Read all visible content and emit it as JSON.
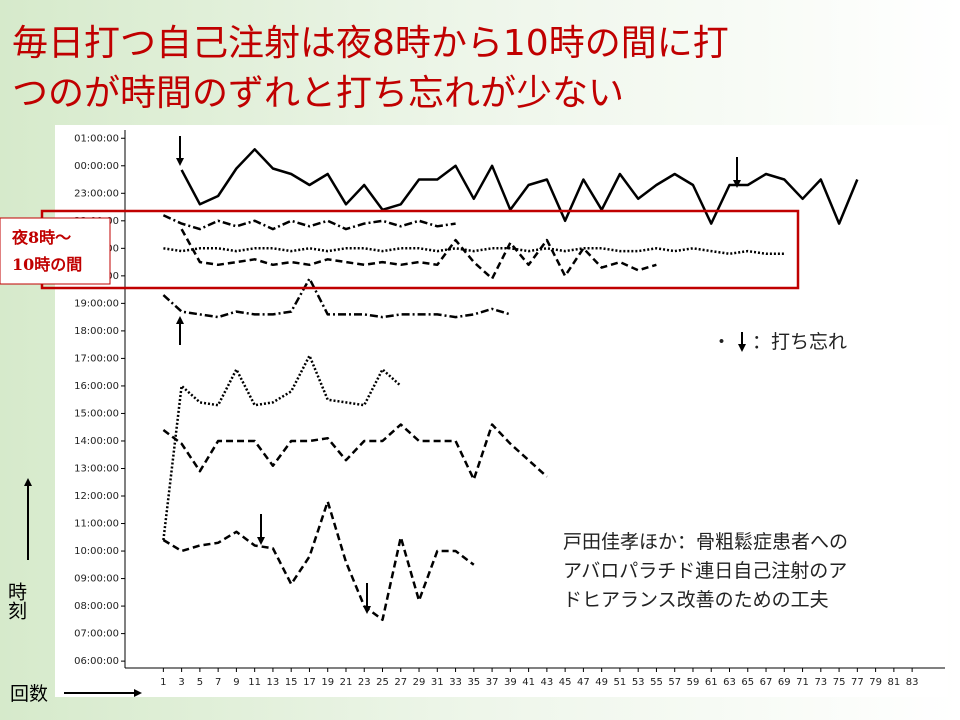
{
  "slide": {
    "title": [
      "毎日打つ自己注射は夜8時から10時の間に打",
      "つのが時間のずれと打ち忘れが少ない"
    ],
    "highlight_label": [
      "夜8時～",
      "10時の間"
    ],
    "legend_label": "：打ち忘れ",
    "citation": [
      "戸田佳孝ほか：骨粗鬆症患者への",
      "アバロパラチド連日自己注射のア",
      "ドヒアランス改善のための工夫"
    ],
    "y_label": "時刻",
    "x_label": "回数"
  },
  "chart_data": {
    "type": "line",
    "xlim": [
      -3.2,
      86.6
    ],
    "ylim": [
      5.75,
      25.3
    ],
    "xticks": [
      1,
      3,
      5,
      7,
      9,
      11,
      13,
      15,
      17,
      19,
      21,
      23,
      25,
      27,
      29,
      31,
      33,
      35,
      37,
      39,
      41,
      43,
      45,
      47,
      49,
      51,
      53,
      55,
      57,
      59,
      61,
      63,
      65,
      67,
      69,
      71,
      73,
      75,
      77,
      79,
      81,
      83
    ],
    "yticks": [
      {
        "value": 6,
        "label": "06:00:00"
      },
      {
        "value": 7,
        "label": "07:00:00"
      },
      {
        "value": 8,
        "label": "08:00:00"
      },
      {
        "value": 9,
        "label": "09:00:00"
      },
      {
        "value": 10,
        "label": "10:00:00"
      },
      {
        "value": 11,
        "label": "11:00:00"
      },
      {
        "value": 12,
        "label": "12:00:00"
      },
      {
        "value": 13,
        "label": "13:00:00"
      },
      {
        "value": 14,
        "label": "14:00:00"
      },
      {
        "value": 15,
        "label": "15:00:00"
      },
      {
        "value": 16,
        "label": "16:00:00"
      },
      {
        "value": 17,
        "label": "17:00:00"
      },
      {
        "value": 18,
        "label": "18:00:00"
      },
      {
        "value": 19,
        "label": "19:00:00"
      },
      {
        "value": 20,
        "label": "20:00:00"
      },
      {
        "value": 21,
        "label": "21:00:00"
      },
      {
        "value": 22,
        "label": "22:00:00"
      },
      {
        "value": 23,
        "label": "23:00:00"
      },
      {
        "value": 24,
        "label": "00:00:00"
      },
      {
        "value": 25,
        "label": "01:00:00"
      }
    ],
    "x": [
      1,
      3,
      5,
      7,
      9,
      11,
      13,
      15,
      17,
      19,
      21,
      23,
      25,
      27,
      29,
      31,
      33,
      35,
      37,
      39,
      41,
      43,
      45,
      47,
      49,
      51,
      53,
      55,
      57,
      59,
      61,
      63,
      65,
      67,
      69,
      71,
      73,
      75,
      77
    ],
    "series": [
      {
        "color": "#000000",
        "dash": "solid",
        "values": [
          null,
          23.85,
          22.6,
          22.9,
          23.9,
          24.6,
          23.9,
          23.7,
          23.3,
          23.7,
          22.6,
          23.3,
          22.4,
          22.6,
          23.5,
          23.5,
          24,
          22.8,
          24,
          22.4,
          23.3,
          23.5,
          22,
          23.5,
          22.4,
          23.7,
          22.8,
          23.3,
          23.7,
          23.3,
          21.9,
          23.3,
          23.3,
          23.7,
          23.5,
          22.8,
          23.5,
          21.9,
          23.5
        ]
      },
      {
        "color": "#000000",
        "dash": "dashdot",
        "values": [
          22.2,
          21.9,
          21.7,
          22,
          21.8,
          22,
          21.7,
          22,
          21.8,
          22,
          21.7,
          21.9,
          22,
          21.8,
          22,
          21.8,
          21.9,
          null,
          null,
          null,
          null,
          null,
          null,
          null,
          null,
          null,
          null,
          null,
          null,
          null,
          null,
          null,
          null,
          null,
          null,
          null,
          null,
          null,
          null
        ]
      },
      {
        "color": "#000000",
        "dash": "dotted",
        "values": [
          21.0,
          20.9,
          21.0,
          21.0,
          20.9,
          21.0,
          21.0,
          20.9,
          21.0,
          20.9,
          21.0,
          21.0,
          20.9,
          21.0,
          21.0,
          20.9,
          21.0,
          20.9,
          21.0,
          21.0,
          20.9,
          21.0,
          20.9,
          21.0,
          21.0,
          20.9,
          20.9,
          21.0,
          20.9,
          21.0,
          20.9,
          20.8,
          20.9,
          20.8,
          20.8,
          null,
          null,
          null,
          null
        ]
      },
      {
        "color": "#000000",
        "dash": "dashed",
        "values": [
          null,
          21.7,
          20.5,
          20.4,
          20.5,
          20.6,
          20.4,
          20.5,
          20.4,
          20.6,
          20.5,
          20.4,
          20.5,
          20.4,
          20.5,
          20.4,
          21.3,
          20.5,
          19.9,
          21.2,
          20.4,
          21.3,
          20.0,
          21.0,
          20.3,
          20.5,
          20.2,
          20.4,
          null,
          null,
          null,
          null,
          null,
          null,
          null,
          null,
          null,
          null,
          null
        ]
      },
      {
        "color": "#000000",
        "dash": "dashdot",
        "values": [
          19.3,
          18.7,
          18.6,
          18.5,
          18.7,
          18.6,
          18.6,
          18.7,
          19.9,
          18.6,
          18.6,
          18.6,
          18.5,
          18.6,
          18.6,
          18.6,
          18.5,
          18.6,
          18.8,
          18.6,
          null,
          null,
          null,
          null,
          null,
          null,
          null,
          null,
          null,
          null,
          null,
          null,
          null,
          null,
          null,
          null,
          null,
          null,
          null
        ]
      },
      {
        "color": "#000000",
        "dash": "dotted",
        "values": [
          10.4,
          16,
          15.4,
          15.3,
          16.6,
          15.3,
          15.4,
          15.8,
          17.1,
          15.5,
          15.4,
          15.3,
          16.6,
          16,
          null,
          null,
          null,
          null,
          null,
          null,
          null,
          null,
          null,
          null,
          null,
          null,
          null,
          null,
          null,
          null,
          null,
          null,
          null,
          null,
          null,
          null,
          null,
          null,
          null
        ]
      },
      {
        "color": "#000000",
        "dash": "dashed",
        "values": [
          14.4,
          13.9,
          12.9,
          14,
          14,
          14,
          13.1,
          14,
          14,
          14.1,
          13.3,
          14,
          14,
          14.6,
          14,
          14,
          14,
          12.6,
          14.6,
          13.9,
          13.3,
          12.7,
          null,
          null,
          null,
          null,
          null,
          null,
          null,
          null,
          null,
          null,
          null,
          null,
          null,
          null,
          null,
          null,
          null
        ]
      },
      {
        "color": "#000000",
        "dash": "dashed",
        "values": [
          10.4,
          10,
          10.2,
          10.3,
          10.7,
          10.2,
          10.1,
          8.8,
          9.8,
          11.8,
          9.6,
          8,
          7.5,
          10.5,
          8.2,
          10,
          10,
          9.5,
          null,
          null,
          null,
          null,
          null,
          null,
          null,
          null,
          null,
          null,
          null,
          null,
          null,
          null,
          null,
          null,
          null,
          null,
          null,
          null,
          null
        ]
      }
    ]
  }
}
